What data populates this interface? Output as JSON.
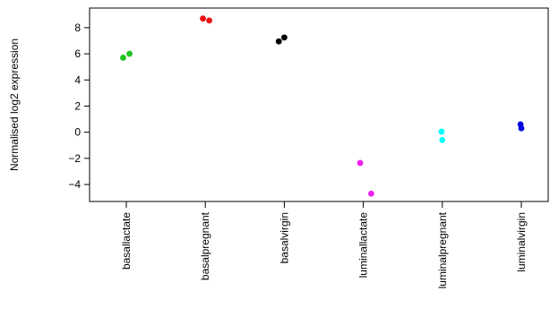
{
  "chart_data": {
    "type": "scatter",
    "ylabel": "Normalised log2 expression",
    "categories": [
      "basallactate",
      "basalpregnant",
      "basalvirgin",
      "luminallactate",
      "luminalpregnant",
      "luminalvirgin"
    ],
    "y_ticks": [
      "8",
      "6",
      "4",
      "2",
      "0",
      "−2",
      "−4"
    ],
    "ylim": [
      -5.3,
      9.5
    ],
    "grid": false,
    "legend": "none",
    "groups": [
      {
        "category": "basallactate",
        "color": "#22c422",
        "points": [
          {
            "x": 0.96,
            "y": 5.7
          },
          {
            "x": 1.04,
            "y": 6.0
          }
        ]
      },
      {
        "category": "basalpregnant",
        "color": "#ee1111",
        "points": [
          {
            "x": 1.97,
            "y": 8.7
          },
          {
            "x": 2.05,
            "y": 8.55
          }
        ]
      },
      {
        "category": "basalvirgin",
        "color": "#000000",
        "points": [
          {
            "x": 2.93,
            "y": 6.95
          },
          {
            "x": 3.0,
            "y": 7.25
          }
        ]
      },
      {
        "category": "luminallactate",
        "color": "#ee22ee",
        "points": [
          {
            "x": 3.96,
            "y": -2.35
          },
          {
            "x": 4.1,
            "y": -4.7
          }
        ]
      },
      {
        "category": "luminalpregnant",
        "color": "#00ffff",
        "points": [
          {
            "x": 4.99,
            "y": 0.05
          },
          {
            "x": 5.0,
            "y": -0.6
          }
        ]
      },
      {
        "category": "luminalvirgin",
        "color": "#0000dd",
        "points": [
          {
            "x": 5.99,
            "y": 0.6
          },
          {
            "x": 6.0,
            "y": 0.3
          }
        ]
      }
    ]
  }
}
